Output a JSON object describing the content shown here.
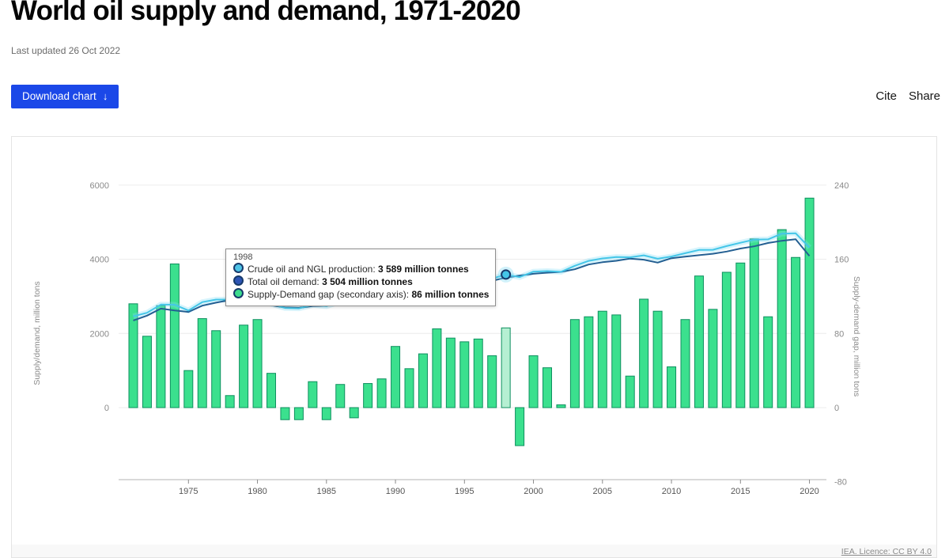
{
  "header": {
    "title": "World oil supply and demand, 1971-2020",
    "last_updated": "Last updated 26 Oct 2022"
  },
  "toolbar": {
    "download_label": "Download chart",
    "download_arrow": "↓",
    "cite_label": "Cite",
    "share_label": "Share"
  },
  "tooltip": {
    "year": "1998",
    "rows": [
      {
        "series": "production",
        "label": "Crude oil and NGL production: ",
        "value": "3 589 million tonnes",
        "color": "#4ec3e6"
      },
      {
        "series": "demand",
        "label": "Total oil demand: ",
        "value": "3 504 million tonnes",
        "color": "#2d55b5"
      },
      {
        "series": "gap",
        "label": "Supply-Demand gap (secondary axis): ",
        "value": "86 million tonnes",
        "color": "#3ddc8e"
      }
    ]
  },
  "footer": {
    "licence": "IEA. Licence: CC BY 4.0"
  },
  "chart_data": {
    "type": "combo (bars on secondary axis + 2 lines on primary axis)",
    "title": "World oil supply and demand, 1971-2020",
    "x": [
      1971,
      1972,
      1973,
      1974,
      1975,
      1976,
      1977,
      1978,
      1979,
      1980,
      1981,
      1982,
      1983,
      1984,
      1985,
      1986,
      1987,
      1988,
      1989,
      1990,
      1991,
      1992,
      1993,
      1994,
      1995,
      1996,
      1997,
      1998,
      1999,
      2000,
      2001,
      2002,
      2003,
      2004,
      2005,
      2006,
      2007,
      2008,
      2009,
      2010,
      2011,
      2012,
      2013,
      2014,
      2015,
      2016,
      2017,
      2018,
      2019,
      2020
    ],
    "x_ticks": [
      1975,
      1980,
      1985,
      1990,
      1995,
      2000,
      2005,
      2010,
      2015,
      2020
    ],
    "highlight_year": 1998,
    "series": [
      {
        "name": "Crude oil and NGL production",
        "type": "line",
        "axis": "left",
        "color": "#45c6e8",
        "values": [
          2462,
          2557,
          2780,
          2775,
          2620,
          2846,
          2913,
          2913,
          3069,
          2965,
          2797,
          2687,
          2677,
          2768,
          2737,
          2855,
          2869,
          2986,
          3051,
          3146,
          3142,
          3198,
          3225,
          3275,
          3311,
          3394,
          3476,
          3589,
          3519,
          3666,
          3683,
          3663,
          3825,
          3958,
          4024,
          4060,
          4054,
          4107,
          4014,
          4074,
          4165,
          4252,
          4256,
          4356,
          4446,
          4532,
          4538,
          4692,
          4702,
          4316
        ]
      },
      {
        "name": "Total oil demand",
        "type": "line",
        "axis": "left",
        "color": "#235f92",
        "values": [
          2350,
          2480,
          2670,
          2620,
          2580,
          2750,
          2830,
          2900,
          2980,
          2870,
          2760,
          2700,
          2690,
          2740,
          2750,
          2830,
          2880,
          2960,
          3020,
          3080,
          3100,
          3140,
          3140,
          3200,
          3240,
          3320,
          3420,
          3504,
          3560,
          3610,
          3640,
          3660,
          3730,
          3860,
          3920,
          3960,
          4020,
          3990,
          3910,
          4030,
          4070,
          4110,
          4150,
          4210,
          4290,
          4350,
          4440,
          4500,
          4540,
          4090
        ]
      },
      {
        "name": "Supply-Demand gap (secondary axis)",
        "type": "bar",
        "axis": "right",
        "color": "#3be08e",
        "stroke": "#0e8f5f",
        "highlight_fill": "#b5efd2",
        "values": [
          112,
          77,
          110,
          155,
          40,
          96,
          83,
          13,
          89,
          95,
          37,
          -13,
          -13,
          28,
          -13,
          25,
          -11,
          26,
          31,
          66,
          42,
          58,
          85,
          75,
          71,
          74,
          56,
          86,
          -41,
          56,
          43,
          3,
          95,
          98,
          104,
          100,
          34,
          117,
          104,
          44,
          95,
          142,
          106,
          146,
          156,
          182,
          98,
          192,
          162,
          226
        ]
      }
    ],
    "left_axis": {
      "label": "Supply/demand, million tons",
      "ticks": [
        0,
        2000,
        4000,
        6000
      ],
      "range": [
        -2000,
        6300
      ]
    },
    "right_axis": {
      "label": "Supply-demand gap, million tons",
      "ticks": [
        -80,
        0,
        80,
        160,
        240
      ],
      "range": [
        -80,
        252
      ]
    },
    "grid": "horizontal-only",
    "legend": "none (tooltip shown instead)",
    "marker": {
      "year": 1998,
      "series": "Crude oil and NGL production",
      "value": 3589
    }
  }
}
